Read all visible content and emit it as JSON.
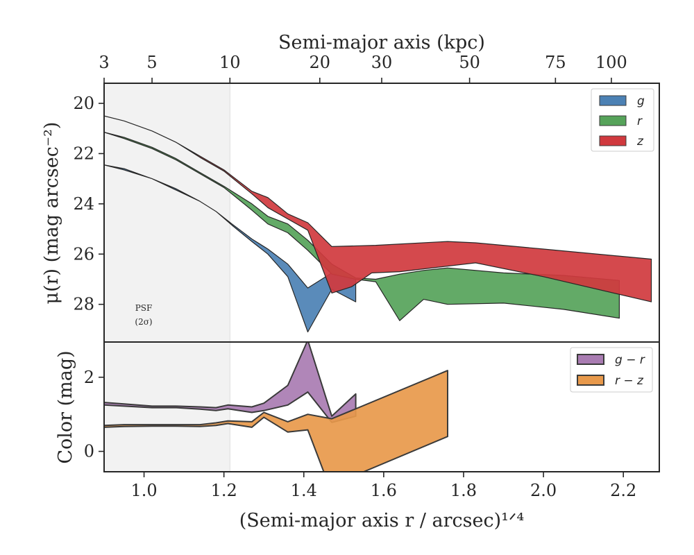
{
  "chart_data": [
    {
      "type": "area",
      "panel": "top",
      "ylabel": "μ(r) (mag arcsec⁻²)",
      "ylim": [
        29.5,
        19.2
      ],
      "y_inverted": true,
      "yticks": [
        "20",
        "22",
        "24",
        "26",
        "28"
      ],
      "top_axis": {
        "label": "Semi-major axis (kpc)",
        "ticks": [
          "3",
          "5",
          "10",
          "20",
          "30",
          "50",
          "75",
          "100"
        ],
        "tick_values_kpc": [
          3,
          5,
          10,
          20,
          30,
          50,
          75,
          100
        ],
        "tick_positions_x": [
          0.9,
          1.02,
          1.215,
          1.44,
          1.595,
          1.815,
          2.03,
          2.17
        ]
      },
      "psf_region": {
        "x_max": 1.215,
        "label_line1": "PSF",
        "label_line2": "(2σ)"
      },
      "legend": {
        "placement": "upper right"
      },
      "series": [
        {
          "name": "g",
          "color": "#4c81b4",
          "x_upper": [
            0.9,
            0.95,
            1.02,
            1.08,
            1.14,
            1.18,
            1.22,
            1.27,
            1.31,
            1.36,
            1.41,
            1.47,
            1.53
          ],
          "y_upper": [
            22.45,
            22.6,
            23.0,
            23.4,
            23.9,
            24.3,
            24.8,
            25.4,
            25.8,
            26.4,
            27.35,
            26.75,
            27.0
          ],
          "x_lower": [
            0.9,
            0.95,
            1.02,
            1.08,
            1.14,
            1.18,
            1.22,
            1.27,
            1.31,
            1.36,
            1.41,
            1.47,
            1.53
          ],
          "y_lower": [
            22.45,
            22.65,
            23.0,
            23.45,
            23.9,
            24.3,
            24.85,
            25.5,
            26.0,
            26.9,
            29.1,
            27.4,
            27.9
          ]
        },
        {
          "name": "r",
          "color": "#56a35a",
          "x_upper": [
            0.9,
            0.95,
            1.02,
            1.08,
            1.14,
            1.2,
            1.27,
            1.31,
            1.36,
            1.41,
            1.47,
            1.53,
            1.58,
            1.64,
            1.7,
            1.76,
            1.9,
            2.05,
            2.19
          ],
          "y_upper": [
            21.15,
            21.35,
            21.75,
            22.2,
            22.75,
            23.3,
            24.0,
            24.5,
            24.8,
            25.45,
            26.4,
            26.95,
            27.0,
            26.8,
            26.65,
            26.55,
            26.75,
            26.85,
            27.05
          ],
          "x_lower": [
            0.9,
            0.95,
            1.02,
            1.08,
            1.14,
            1.2,
            1.27,
            1.31,
            1.36,
            1.41,
            1.47,
            1.53,
            1.58,
            1.64,
            1.7,
            1.76,
            1.9,
            2.05,
            2.19
          ],
          "y_lower": [
            21.15,
            21.4,
            21.8,
            22.25,
            22.8,
            23.35,
            24.25,
            24.8,
            25.15,
            25.85,
            26.8,
            27.0,
            27.1,
            28.65,
            27.8,
            28.0,
            27.95,
            28.2,
            28.55
          ]
        },
        {
          "name": "z",
          "color": "#d0393e",
          "x_upper": [
            0.9,
            0.95,
            1.02,
            1.08,
            1.14,
            1.2,
            1.27,
            1.31,
            1.36,
            1.41,
            1.47,
            1.58,
            1.76,
            1.83,
            2.0,
            2.27
          ],
          "y_upper": [
            20.5,
            20.7,
            21.1,
            21.55,
            22.1,
            22.65,
            23.5,
            23.75,
            24.4,
            24.75,
            25.7,
            25.65,
            25.5,
            25.55,
            25.8,
            26.2
          ],
          "x_lower": [
            0.9,
            0.95,
            1.02,
            1.08,
            1.14,
            1.2,
            1.27,
            1.31,
            1.36,
            1.41,
            1.47,
            1.52,
            1.57,
            1.64,
            1.83,
            2.0,
            2.27
          ],
          "y_lower": [
            20.5,
            20.7,
            21.1,
            21.55,
            22.15,
            22.7,
            23.6,
            24.15,
            24.6,
            25.05,
            27.55,
            27.3,
            26.75,
            26.7,
            26.35,
            26.9,
            27.9
          ]
        }
      ]
    },
    {
      "type": "area",
      "panel": "bottom",
      "xlabel": "(Semi-major axis r / arcsec)¹ᐟ⁴",
      "ylabel": "Color (mag)",
      "xlim": [
        0.9,
        2.29
      ],
      "ylim": [
        -0.55,
        2.95
      ],
      "xticks": [
        "1.0",
        "1.2",
        "1.4",
        "1.6",
        "1.8",
        "2.0",
        "2.2"
      ],
      "xtick_values": [
        1.0,
        1.2,
        1.4,
        1.6,
        1.8,
        2.0,
        2.2
      ],
      "yticks": [
        "0",
        "2"
      ],
      "ytick_values": [
        0,
        2
      ],
      "legend": {
        "placement": "upper right"
      },
      "series": [
        {
          "name": "g − r",
          "color": "#a97cb2",
          "x_upper": [
            0.9,
            0.95,
            1.02,
            1.08,
            1.14,
            1.18,
            1.21,
            1.27,
            1.3,
            1.36,
            1.41,
            1.47,
            1.53
          ],
          "y_upper": [
            1.32,
            1.28,
            1.22,
            1.22,
            1.2,
            1.18,
            1.25,
            1.2,
            1.3,
            1.78,
            3.0,
            0.95,
            1.55
          ],
          "x_lower": [
            0.9,
            0.95,
            1.02,
            1.08,
            1.14,
            1.18,
            1.21,
            1.27,
            1.3,
            1.36,
            1.41,
            1.47,
            1.53
          ],
          "y_lower": [
            1.25,
            1.22,
            1.18,
            1.18,
            1.14,
            1.1,
            1.15,
            1.05,
            1.1,
            1.25,
            1.6,
            0.78,
            0.95
          ]
        },
        {
          "name": "r − z",
          "color": "#e8994b",
          "x_upper": [
            0.9,
            0.95,
            1.02,
            1.08,
            1.14,
            1.18,
            1.21,
            1.27,
            1.3,
            1.36,
            1.41,
            1.47,
            1.76
          ],
          "y_upper": [
            0.7,
            0.72,
            0.72,
            0.72,
            0.72,
            0.77,
            0.82,
            0.8,
            1.05,
            0.8,
            1.0,
            0.88,
            2.18
          ],
          "x_lower": [
            0.9,
            0.95,
            1.02,
            1.08,
            1.14,
            1.18,
            1.21,
            1.27,
            1.3,
            1.36,
            1.41,
            1.45,
            1.55,
            1.76
          ],
          "y_lower": [
            0.65,
            0.67,
            0.68,
            0.68,
            0.67,
            0.7,
            0.75,
            0.65,
            0.92,
            0.52,
            0.58,
            -0.55,
            -0.55,
            0.4
          ]
        }
      ]
    }
  ]
}
